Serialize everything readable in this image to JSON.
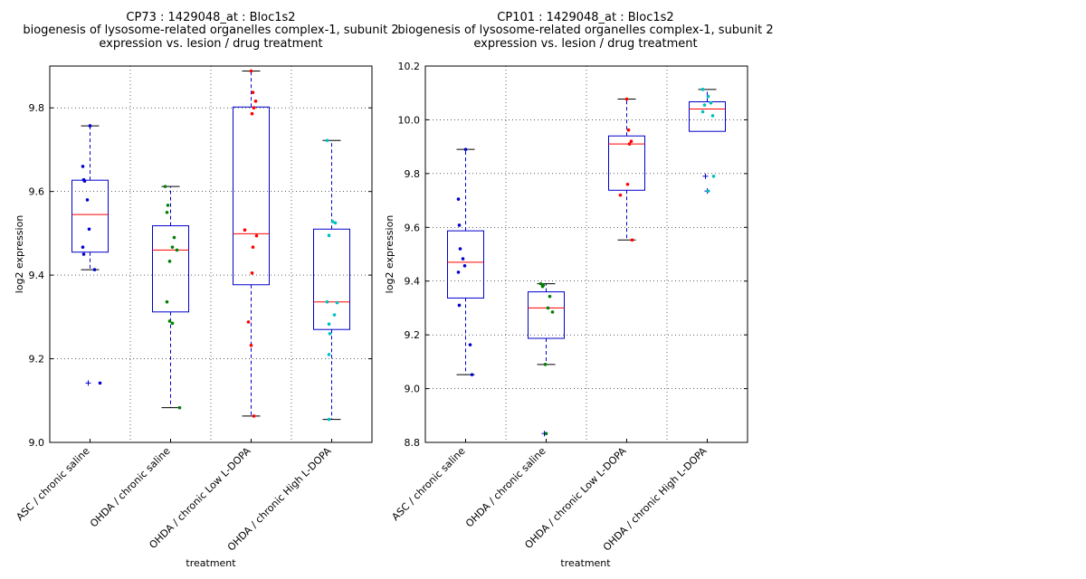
{
  "chart_data": [
    {
      "type": "box",
      "title_lines": [
        "CP73 : 1429048_at : Bloc1s2",
        "biogenesis of lysosome-related organelles complex-1, subunit 2",
        "expression vs. lesion / drug treatment"
      ],
      "xlabel": "treatment",
      "ylabel": "log2 expression",
      "ylim": [
        9.0,
        9.9
      ],
      "yticks": [
        "9.0",
        "9.2",
        "9.4",
        "9.6",
        "9.8"
      ],
      "grid": true,
      "categories": [
        "ASC / chronic saline",
        "OHDA / chronic saline",
        "OHDA / chronic Low L-DOPA",
        "OHDA / chronic High L-DOPA"
      ],
      "boxes": [
        {
          "q1": 9.455,
          "median": 9.545,
          "q3": 9.627,
          "whisker_low": 9.413,
          "whisker_high": 9.757,
          "outliers": [
            9.142
          ]
        },
        {
          "q1": 9.312,
          "median": 9.46,
          "q3": 9.518,
          "whisker_low": 9.083,
          "whisker_high": 9.612,
          "outliers": []
        },
        {
          "q1": 9.377,
          "median": 9.499,
          "q3": 9.802,
          "whisker_low": 9.063,
          "whisker_high": 9.888,
          "outliers": []
        },
        {
          "q1": 9.27,
          "median": 9.336,
          "q3": 9.51,
          "whisker_low": 9.055,
          "whisker_high": 9.722,
          "outliers": []
        }
      ],
      "points": [
        [
          9.757,
          9.66,
          9.628,
          9.625,
          9.58,
          9.51,
          9.467,
          9.45,
          9.413,
          9.142
        ],
        [
          9.612,
          9.567,
          9.55,
          9.49,
          9.467,
          9.46,
          9.433,
          9.336,
          9.29,
          9.285,
          9.083
        ],
        [
          9.888,
          9.837,
          9.816,
          9.8,
          9.786,
          9.508,
          9.494,
          9.467,
          9.405,
          9.288,
          9.232,
          9.063
        ],
        [
          9.722,
          9.528,
          9.525,
          9.495,
          9.336,
          9.334,
          9.305,
          9.283,
          9.26,
          9.21,
          9.055
        ]
      ],
      "point_colors": [
        "#0000cc",
        "#008000",
        "#ff0000",
        "#00bfbf"
      ]
    },
    {
      "type": "box",
      "title_lines": [
        "CP101 : 1429048_at : Bloc1s2",
        "biogenesis of lysosome-related organelles complex-1, subunit 2",
        "expression vs. lesion / drug treatment"
      ],
      "xlabel": "treatment",
      "ylabel": "log2 expression",
      "ylim": [
        8.8,
        10.2
      ],
      "yticks": [
        "8.8",
        "9.0",
        "9.2",
        "9.4",
        "9.6",
        "9.8",
        "10.0",
        "10.2"
      ],
      "grid": true,
      "categories": [
        "ASC / chronic saline",
        "OHDA / chronic saline",
        "OHDA / chronic Low L-DOPA",
        "OHDA / chronic High L-DOPA"
      ],
      "boxes": [
        {
          "q1": 9.337,
          "median": 9.47,
          "q3": 9.587,
          "whisker_low": 9.052,
          "whisker_high": 9.89,
          "outliers": []
        },
        {
          "q1": 9.187,
          "median": 9.3,
          "q3": 9.36,
          "whisker_low": 9.09,
          "whisker_high": 9.39,
          "outliers": [
            8.833
          ]
        },
        {
          "q1": 9.738,
          "median": 9.91,
          "q3": 9.94,
          "whisker_low": 9.553,
          "whisker_high": 10.077,
          "outliers": []
        },
        {
          "q1": 9.957,
          "median": 10.04,
          "q3": 10.067,
          "whisker_low": null,
          "whisker_high": 10.113,
          "outliers": [
            9.79,
            9.735
          ]
        }
      ],
      "points": [
        [
          9.89,
          9.705,
          9.608,
          9.52,
          9.483,
          9.457,
          9.433,
          9.31,
          9.163,
          9.052
        ],
        [
          9.39,
          9.385,
          9.38,
          9.343,
          9.3,
          9.285,
          9.09,
          8.833
        ],
        [
          10.077,
          9.962,
          9.92,
          9.91,
          9.76,
          9.72,
          9.553
        ],
        [
          10.113,
          10.087,
          10.063,
          10.055,
          10.03,
          10.015,
          9.79,
          9.735
        ]
      ],
      "point_colors": [
        "#0000cc",
        "#008000",
        "#ff0000",
        "#00bfbf"
      ]
    }
  ]
}
